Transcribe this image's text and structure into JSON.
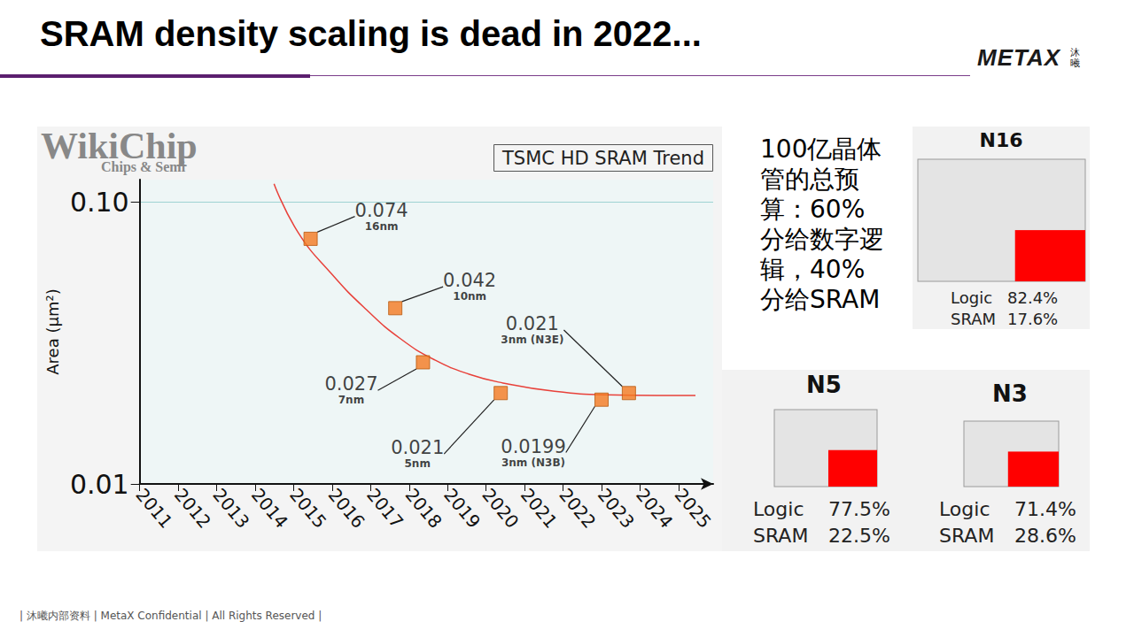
{
  "title": "SRAM density scaling is dead in 2022...",
  "logo": {
    "text": "METAX",
    "text_cn": "沐曦"
  },
  "footer": "| 沐曦内部资料 | MetaX Confidential | All Rights Reserved |",
  "annotation": "100亿晶体管的总预算：60%分给数字逻辑，40%分给SRAM",
  "chart_data": {
    "type": "scatter",
    "title": "TSMC HD SRAM Trend",
    "source_logo": {
      "name": "WikiChip",
      "tagline": "Chips & Semi"
    },
    "y_label": "Area (µm²)",
    "log": "y",
    "grid": true,
    "data_labels": true,
    "xlim": [
      2011,
      2025.9
    ],
    "xticks": [
      2011,
      2012,
      2013,
      2014,
      2015,
      2016,
      2017,
      2018,
      2019,
      2020,
      2021,
      2022,
      2023,
      2024,
      2025
    ],
    "ylim": [
      0.01,
      0.12
    ],
    "yticks": [
      0.01,
      {
        "value": 0.1,
        "label": "0.10"
      }
    ],
    "series": [
      {
        "type": "scatter",
        "color": "#f47920",
        "marker": "square",
        "x": [
          2015.44,
          2017.64,
          2018.36,
          2020.38,
          2023.0,
          2023.71
        ],
        "values": [
          0.074,
          0.042,
          0.027,
          0.021,
          0.0199,
          0.021
        ],
        "nodes": [
          "16nm",
          "10nm",
          "7nm",
          "5nm",
          "3nm (N3B)",
          "3nm (N3E)"
        ]
      },
      {
        "type": "line",
        "color": "#e8413a",
        "line_style": "solid",
        "x": [
          2014.49,
          2015.11,
          2016.0,
          2016.89,
          2017.78,
          2018.67,
          2019.56,
          2020.44,
          2021.78,
          2023.11,
          2024.44,
          2025.44
        ],
        "values": [
          0.116,
          0.0782,
          0.0553,
          0.0415,
          0.0327,
          0.0275,
          0.0245,
          0.0228,
          0.0213,
          0.0207,
          0.0206,
          0.0206
        ]
      }
    ]
  },
  "panels": [
    {
      "title": "N16",
      "items": [
        {
          "label": "Logic",
          "value": 82.4,
          "text": "82.4%"
        },
        {
          "label": "SRAM",
          "value": 17.6,
          "text": "17.6%"
        }
      ]
    },
    {
      "title": "N5",
      "items": [
        {
          "label": "Logic",
          "value": 77.5,
          "text": "77.5%"
        },
        {
          "label": "SRAM",
          "value": 22.5,
          "text": "22.5%"
        }
      ]
    },
    {
      "title": "N3",
      "items": [
        {
          "label": "Logic",
          "value": 71.4,
          "text": "71.4%"
        },
        {
          "label": "SRAM",
          "value": 28.6,
          "text": "28.6%"
        }
      ]
    }
  ]
}
